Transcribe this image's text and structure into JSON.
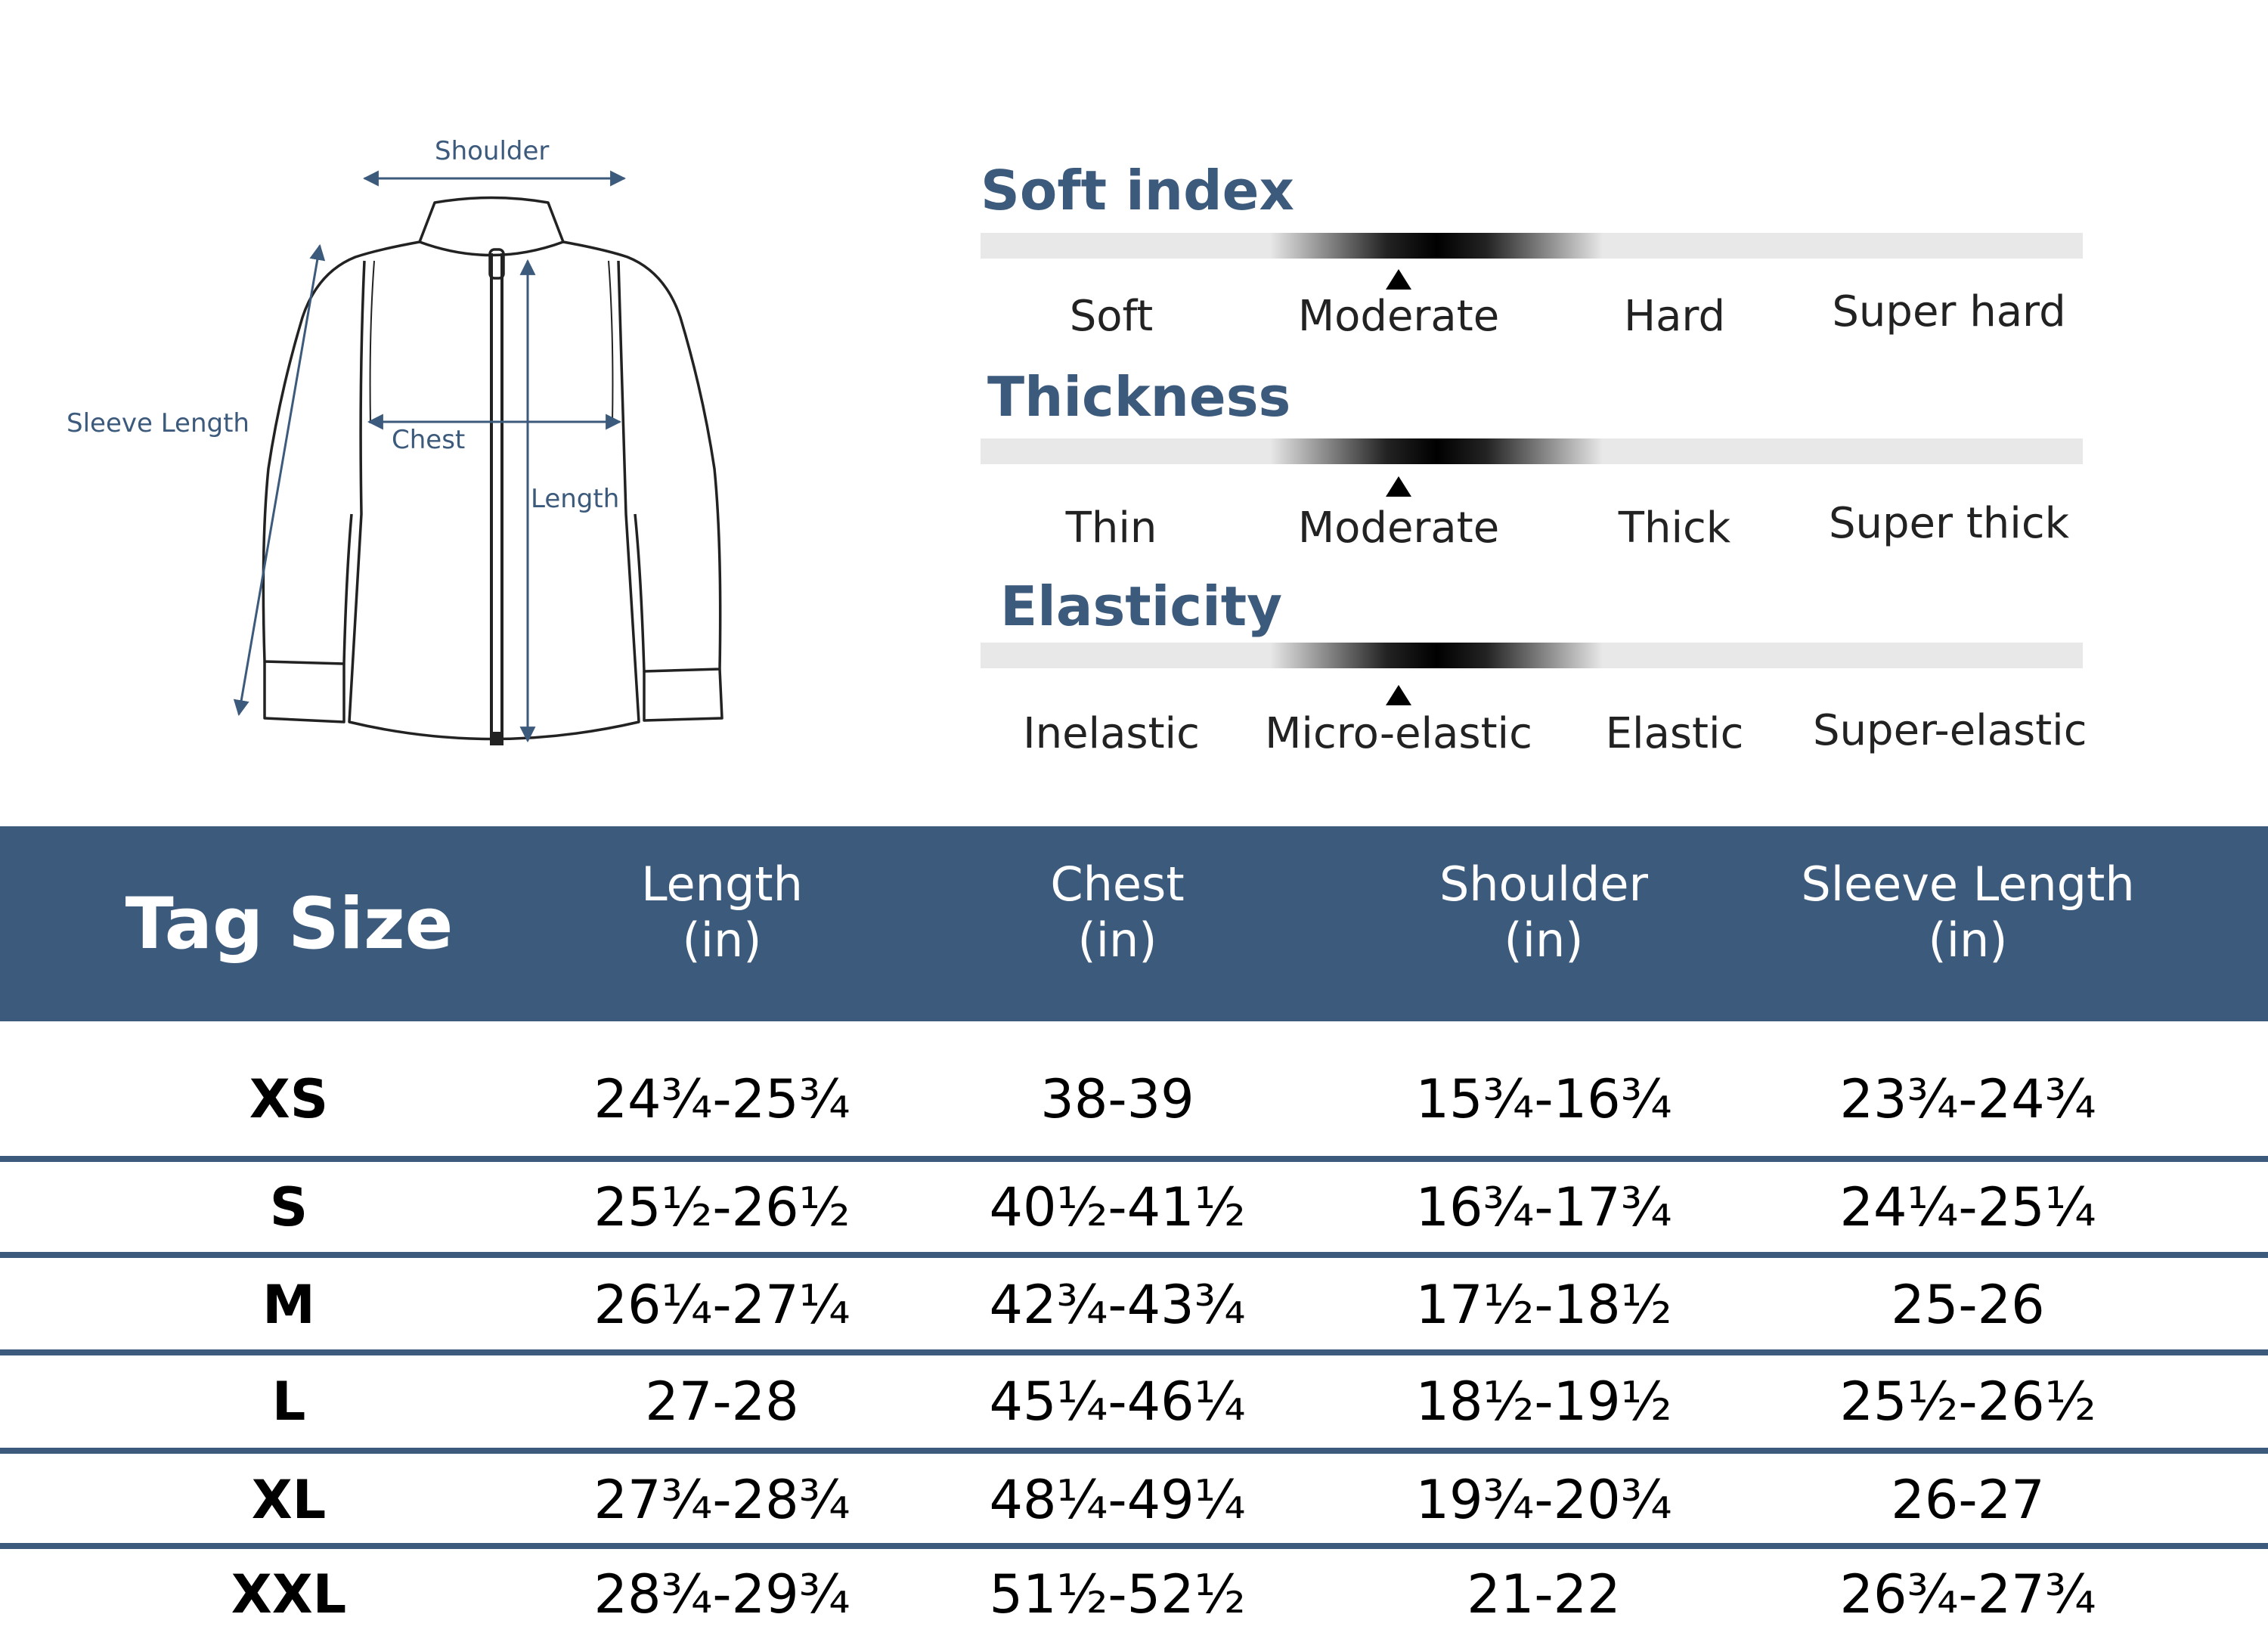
{
  "diagram": {
    "labels": {
      "shoulder": "Shoulder",
      "sleeve_length": "Sleeve Length",
      "chest": "Chest",
      "length": "Length"
    }
  },
  "scales": [
    {
      "title": "Soft index",
      "options": [
        "Soft",
        "Moderate",
        "Hard",
        "Super hard"
      ],
      "selected_index": 1
    },
    {
      "title": "Thickness",
      "options": [
        "Thin",
        "Moderate",
        "Thick",
        "Super thick"
      ],
      "selected_index": 1
    },
    {
      "title": "Elasticity",
      "options": [
        "Inelastic",
        "Micro-elastic",
        "Elastic",
        "Super-elastic"
      ],
      "selected_index": 1
    }
  ],
  "table": {
    "header": {
      "tag_size": "Tag Size",
      "columns": [
        {
          "name": "Length",
          "unit": "(in)"
        },
        {
          "name": "Chest",
          "unit": "(in)"
        },
        {
          "name": "Shoulder",
          "unit": "(in)"
        },
        {
          "name": "Sleeve Length",
          "unit": "(in)"
        }
      ]
    },
    "rows": [
      {
        "size": "XS",
        "values": [
          "24¾-25¾",
          "38-39",
          "15¾-16¾",
          "23¾-24¾"
        ]
      },
      {
        "size": "S",
        "values": [
          "25½-26½",
          "40½-41½",
          "16¾-17¾",
          "24¼-25¼"
        ]
      },
      {
        "size": "M",
        "values": [
          "26¼-27¼",
          "42¾-43¾",
          "17½-18½",
          "25-26"
        ]
      },
      {
        "size": "L",
        "values": [
          "27-28",
          "45¼-46¼",
          "18½-19½",
          "25½-26½"
        ]
      },
      {
        "size": "XL",
        "values": [
          "27¾-28¾",
          "48¼-49¼",
          "19¾-20¾",
          "26-27"
        ]
      },
      {
        "size": "XXL",
        "values": [
          "28¾-29¾",
          "51½-52½",
          "21-22",
          "26¾-27¾"
        ]
      }
    ]
  },
  "colors": {
    "accent": "#3c5a7c",
    "bar_track": "#e8e8e8"
  }
}
